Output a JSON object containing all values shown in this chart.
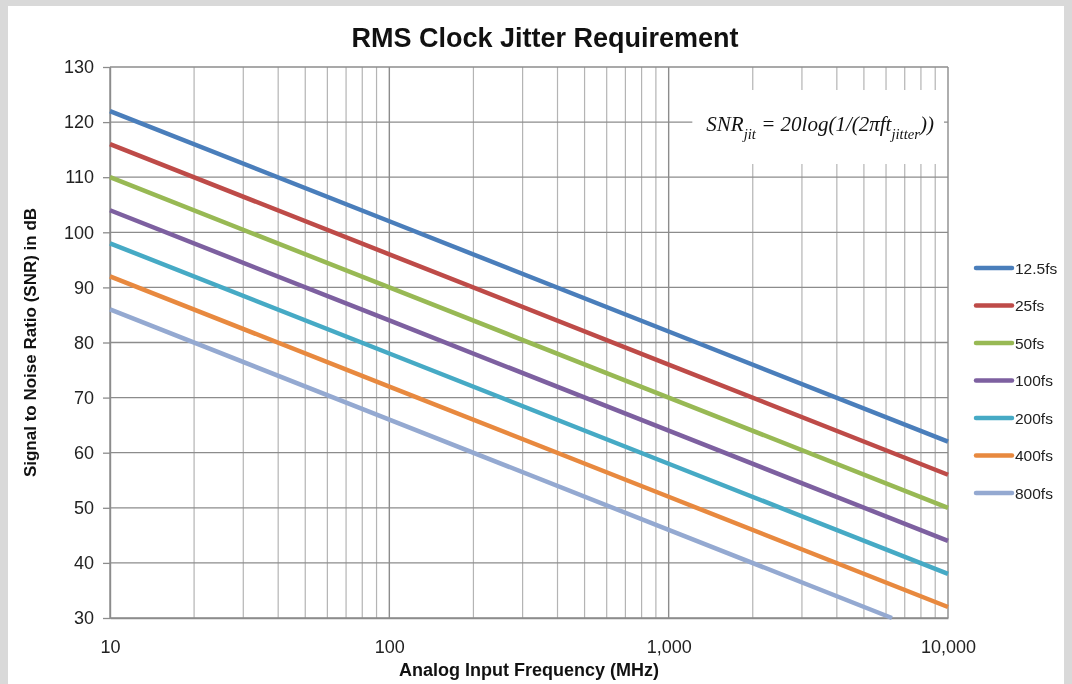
{
  "chart_data": {
    "type": "line",
    "title": "RMS Clock Jitter Requirement",
    "xlabel": "Analog Input Frequency (MHz)",
    "ylabel": "Signal to Noise Ratio (SNR) in dB",
    "annotations": [
      "SNR$_{jit}$ = 20log(1/(2πft$_{jitter}$))"
    ],
    "x": [
      10,
      100,
      1000,
      10000
    ],
    "series": [
      {
        "name": "12.5fs",
        "color": "#4a7ebb",
        "values": [
          122,
          102,
          82,
          62
        ]
      },
      {
        "name": "25fs",
        "color": "#be4b48",
        "values": [
          116,
          96,
          76,
          56
        ]
      },
      {
        "name": "50fs",
        "color": "#98b954",
        "values": [
          110,
          90,
          70,
          50
        ]
      },
      {
        "name": "100fs",
        "color": "#7d60a0",
        "values": [
          104,
          84,
          64,
          44
        ]
      },
      {
        "name": "200fs",
        "color": "#46aac5",
        "values": [
          98,
          78,
          58,
          38
        ]
      },
      {
        "name": "400fs",
        "color": "#e8893f",
        "values": [
          92,
          72,
          52,
          32
        ]
      },
      {
        "name": "800fs",
        "color": "#94a9d1",
        "x": [
          10,
          100,
          1000,
          6300
        ],
        "values": [
          86,
          66,
          46,
          30
        ]
      }
    ],
    "log": "x",
    "xlim": [
      10,
      10000
    ],
    "xticks": [
      10,
      100,
      {
        "value": 1000,
        "label": "1,000"
      },
      {
        "value": 10000,
        "label": "10,000"
      }
    ],
    "ylim": [
      30,
      130
    ],
    "yticks": [
      30,
      40,
      50,
      60,
      70,
      80,
      90,
      100,
      110,
      120,
      130
    ],
    "grid": true,
    "legend": "right"
  }
}
